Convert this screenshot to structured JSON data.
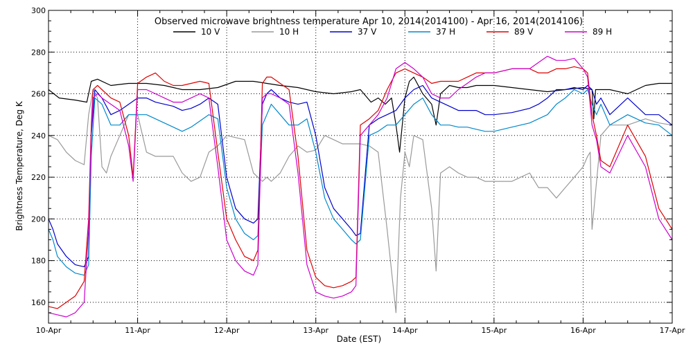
{
  "chart_data": {
    "type": "line",
    "title": "Observed microwave brightness temperature Apr 10, 2014(2014100) - Apr 16, 2014(2014106)",
    "xlabel": "Date (EST)",
    "ylabel": "Brightness Temperature, Deg K",
    "x_ticks": [
      "10-Apr",
      "11-Apr",
      "12-Apr",
      "13-Apr",
      "14-Apr",
      "15-Apr",
      "16-Apr",
      "17-Apr"
    ],
    "xlim": [
      0,
      7
    ],
    "ylim": [
      150,
      300
    ],
    "y_ticks": [
      160,
      180,
      200,
      220,
      240,
      260,
      280,
      300
    ],
    "grid": true,
    "legend_position": "top",
    "series": [
      {
        "name": "10 V",
        "color": "#000000",
        "x": [
          0,
          0.12,
          0.3,
          0.43,
          0.48,
          0.55,
          0.7,
          0.9,
          1.1,
          1.3,
          1.5,
          1.7,
          1.9,
          2.1,
          2.3,
          2.45,
          2.6,
          2.8,
          3.0,
          3.2,
          3.4,
          3.5,
          3.62,
          3.7,
          3.78,
          3.85,
          3.9,
          3.94,
          4.0,
          4.05,
          4.1,
          4.2,
          4.3,
          4.35,
          4.4,
          4.5,
          4.6,
          4.7,
          4.8,
          5.0,
          5.2,
          5.4,
          5.6,
          5.8,
          6.0,
          6.1,
          6.12,
          6.14,
          6.3,
          6.5,
          6.7,
          6.85,
          7.0
        ],
        "values": [
          262,
          258,
          257,
          256,
          266,
          267,
          264,
          265,
          265,
          264,
          262,
          262,
          263,
          266,
          266,
          265,
          264,
          263,
          261,
          260,
          261,
          262,
          256,
          258,
          255,
          258,
          245,
          232,
          258,
          266,
          268,
          260,
          255,
          245,
          260,
          264,
          263,
          263,
          264,
          264,
          263,
          262,
          261,
          262,
          263,
          262,
          248,
          262,
          262,
          260,
          264,
          265,
          265
        ]
      },
      {
        "name": "10 H",
        "color": "#999999",
        "x": [
          0,
          0.1,
          0.2,
          0.3,
          0.4,
          0.45,
          0.5,
          0.55,
          0.6,
          0.65,
          0.7,
          0.8,
          0.9,
          1.0,
          1.1,
          1.2,
          1.3,
          1.4,
          1.5,
          1.6,
          1.7,
          1.8,
          1.9,
          2.0,
          2.2,
          2.3,
          2.4,
          2.45,
          2.5,
          2.6,
          2.7,
          2.8,
          2.9,
          3.0,
          3.1,
          3.2,
          3.3,
          3.4,
          3.5,
          3.6,
          3.7,
          3.8,
          3.85,
          3.9,
          3.95,
          4.0,
          4.05,
          4.1,
          4.2,
          4.3,
          4.35,
          4.4,
          4.5,
          4.6,
          4.7,
          4.8,
          4.9,
          5.0,
          5.2,
          5.4,
          5.5,
          5.6,
          5.7,
          5.8,
          5.9,
          6.0,
          6.05,
          6.08,
          6.1,
          6.2,
          6.3,
          6.5,
          6.7,
          6.85,
          7.0
        ],
        "values": [
          240,
          238,
          232,
          228,
          226,
          250,
          262,
          258,
          225,
          222,
          230,
          240,
          250,
          250,
          232,
          230,
          230,
          230,
          222,
          218,
          220,
          232,
          235,
          240,
          238,
          222,
          218,
          220,
          218,
          222,
          230,
          235,
          232,
          233,
          240,
          238,
          236,
          236,
          236,
          235,
          232,
          195,
          175,
          155,
          210,
          232,
          225,
          240,
          238,
          205,
          175,
          222,
          225,
          222,
          220,
          220,
          218,
          218,
          218,
          222,
          215,
          215,
          210,
          215,
          220,
          225,
          230,
          232,
          195,
          240,
          245,
          245,
          248,
          246,
          245
        ]
      },
      {
        "name": "37 V",
        "color": "#0000cc",
        "x": [
          0,
          0.05,
          0.1,
          0.2,
          0.3,
          0.4,
          0.45,
          0.48,
          0.52,
          0.6,
          0.7,
          0.8,
          0.9,
          1.0,
          1.1,
          1.2,
          1.3,
          1.4,
          1.5,
          1.6,
          1.7,
          1.8,
          1.9,
          2.0,
          2.1,
          2.2,
          2.3,
          2.35,
          2.4,
          2.45,
          2.5,
          2.6,
          2.7,
          2.8,
          2.9,
          3.0,
          3.1,
          3.2,
          3.3,
          3.4,
          3.45,
          3.5,
          3.6,
          3.7,
          3.8,
          3.9,
          4.0,
          4.1,
          4.2,
          4.3,
          4.4,
          4.5,
          4.6,
          4.7,
          4.8,
          4.9,
          5.0,
          5.2,
          5.4,
          5.5,
          5.6,
          5.7,
          5.8,
          5.9,
          6.0,
          6.05,
          6.1,
          6.15,
          6.2,
          6.3,
          6.5,
          6.7,
          6.85,
          7.0
        ],
        "values": [
          200,
          195,
          188,
          182,
          178,
          177,
          182,
          240,
          262,
          258,
          250,
          252,
          255,
          258,
          258,
          256,
          255,
          254,
          252,
          253,
          255,
          258,
          255,
          220,
          205,
          200,
          198,
          200,
          255,
          260,
          262,
          258,
          256,
          255,
          256,
          240,
          215,
          205,
          200,
          195,
          192,
          193,
          245,
          248,
          250,
          252,
          258,
          262,
          264,
          258,
          256,
          254,
          252,
          252,
          252,
          250,
          250,
          251,
          253,
          255,
          258,
          262,
          262,
          263,
          262,
          264,
          262,
          255,
          258,
          250,
          258,
          250,
          250,
          245
        ]
      },
      {
        "name": "37 H",
        "color": "#0088cc",
        "x": [
          0,
          0.05,
          0.1,
          0.2,
          0.3,
          0.4,
          0.45,
          0.48,
          0.52,
          0.6,
          0.7,
          0.8,
          0.9,
          1.0,
          1.1,
          1.2,
          1.3,
          1.4,
          1.5,
          1.6,
          1.7,
          1.8,
          1.9,
          2.0,
          2.1,
          2.2,
          2.3,
          2.35,
          2.4,
          2.45,
          2.5,
          2.6,
          2.7,
          2.8,
          2.9,
          3.0,
          3.1,
          3.2,
          3.3,
          3.4,
          3.45,
          3.5,
          3.6,
          3.7,
          3.8,
          3.9,
          4.0,
          4.1,
          4.2,
          4.3,
          4.4,
          4.5,
          4.6,
          4.7,
          4.8,
          4.9,
          5.0,
          5.2,
          5.4,
          5.5,
          5.6,
          5.7,
          5.8,
          5.9,
          6.0,
          6.05,
          6.1,
          6.15,
          6.2,
          6.3,
          6.5,
          6.7,
          6.85,
          7.0
        ],
        "values": [
          195,
          190,
          182,
          177,
          174,
          173,
          178,
          230,
          258,
          255,
          245,
          245,
          250,
          250,
          250,
          248,
          246,
          244,
          242,
          244,
          247,
          250,
          248,
          215,
          200,
          193,
          190,
          192,
          245,
          250,
          255,
          250,
          245,
          245,
          248,
          232,
          210,
          200,
          195,
          190,
          188,
          190,
          240,
          242,
          245,
          245,
          250,
          255,
          258,
          250,
          245,
          245,
          244,
          244,
          243,
          242,
          242,
          244,
          246,
          248,
          250,
          255,
          258,
          262,
          260,
          262,
          255,
          250,
          255,
          245,
          250,
          246,
          245,
          240
        ]
      },
      {
        "name": "89 V",
        "color": "#dd0000",
        "x": [
          0,
          0.1,
          0.2,
          0.3,
          0.4,
          0.45,
          0.48,
          0.5,
          0.55,
          0.6,
          0.7,
          0.8,
          0.9,
          0.95,
          1.0,
          1.1,
          1.2,
          1.3,
          1.4,
          1.5,
          1.6,
          1.7,
          1.8,
          1.9,
          2.0,
          2.1,
          2.2,
          2.3,
          2.35,
          2.4,
          2.45,
          2.5,
          2.6,
          2.7,
          2.8,
          2.9,
          3.0,
          3.1,
          3.2,
          3.3,
          3.4,
          3.45,
          3.5,
          3.6,
          3.7,
          3.8,
          3.9,
          4.0,
          4.1,
          4.2,
          4.3,
          4.4,
          4.5,
          4.6,
          4.7,
          4.8,
          4.9,
          5.0,
          5.2,
          5.4,
          5.5,
          5.6,
          5.7,
          5.8,
          5.9,
          6.0,
          6.05,
          6.1,
          6.15,
          6.2,
          6.3,
          6.5,
          6.7,
          6.85,
          7.0
        ],
        "values": [
          158,
          157,
          160,
          163,
          170,
          200,
          245,
          262,
          264,
          262,
          258,
          256,
          240,
          220,
          265,
          268,
          270,
          266,
          264,
          264,
          265,
          266,
          265,
          232,
          200,
          190,
          182,
          180,
          185,
          265,
          268,
          268,
          265,
          262,
          230,
          185,
          172,
          168,
          167,
          168,
          170,
          172,
          245,
          248,
          252,
          262,
          270,
          272,
          270,
          268,
          265,
          266,
          266,
          266,
          268,
          270,
          270,
          270,
          272,
          272,
          270,
          270,
          272,
          272,
          273,
          272,
          270,
          250,
          240,
          228,
          225,
          245,
          230,
          205,
          195
        ]
      },
      {
        "name": "89 H",
        "color": "#cc00cc",
        "x": [
          0,
          0.1,
          0.2,
          0.3,
          0.4,
          0.45,
          0.48,
          0.5,
          0.55,
          0.6,
          0.7,
          0.8,
          0.9,
          0.95,
          1.0,
          1.1,
          1.2,
          1.3,
          1.4,
          1.5,
          1.6,
          1.7,
          1.8,
          1.9,
          2.0,
          2.1,
          2.2,
          2.3,
          2.35,
          2.4,
          2.45,
          2.5,
          2.6,
          2.7,
          2.8,
          2.9,
          3.0,
          3.1,
          3.2,
          3.3,
          3.4,
          3.45,
          3.5,
          3.6,
          3.7,
          3.8,
          3.9,
          4.0,
          4.1,
          4.2,
          4.3,
          4.4,
          4.5,
          4.6,
          4.7,
          4.8,
          4.9,
          5.0,
          5.2,
          5.4,
          5.5,
          5.6,
          5.7,
          5.8,
          5.9,
          6.0,
          6.05,
          6.1,
          6.15,
          6.2,
          6.3,
          6.5,
          6.7,
          6.85,
          7.0
        ],
        "values": [
          155,
          154,
          153,
          155,
          160,
          195,
          240,
          258,
          260,
          258,
          255,
          252,
          235,
          218,
          262,
          262,
          260,
          258,
          256,
          256,
          258,
          260,
          258,
          225,
          190,
          180,
          175,
          173,
          178,
          258,
          260,
          260,
          258,
          255,
          222,
          178,
          165,
          163,
          162,
          163,
          165,
          168,
          240,
          245,
          250,
          258,
          272,
          275,
          272,
          268,
          260,
          258,
          258,
          262,
          265,
          268,
          270,
          270,
          272,
          272,
          275,
          278,
          276,
          276,
          277,
          272,
          268,
          245,
          238,
          225,
          222,
          240,
          225,
          200,
          190
        ]
      }
    ]
  }
}
